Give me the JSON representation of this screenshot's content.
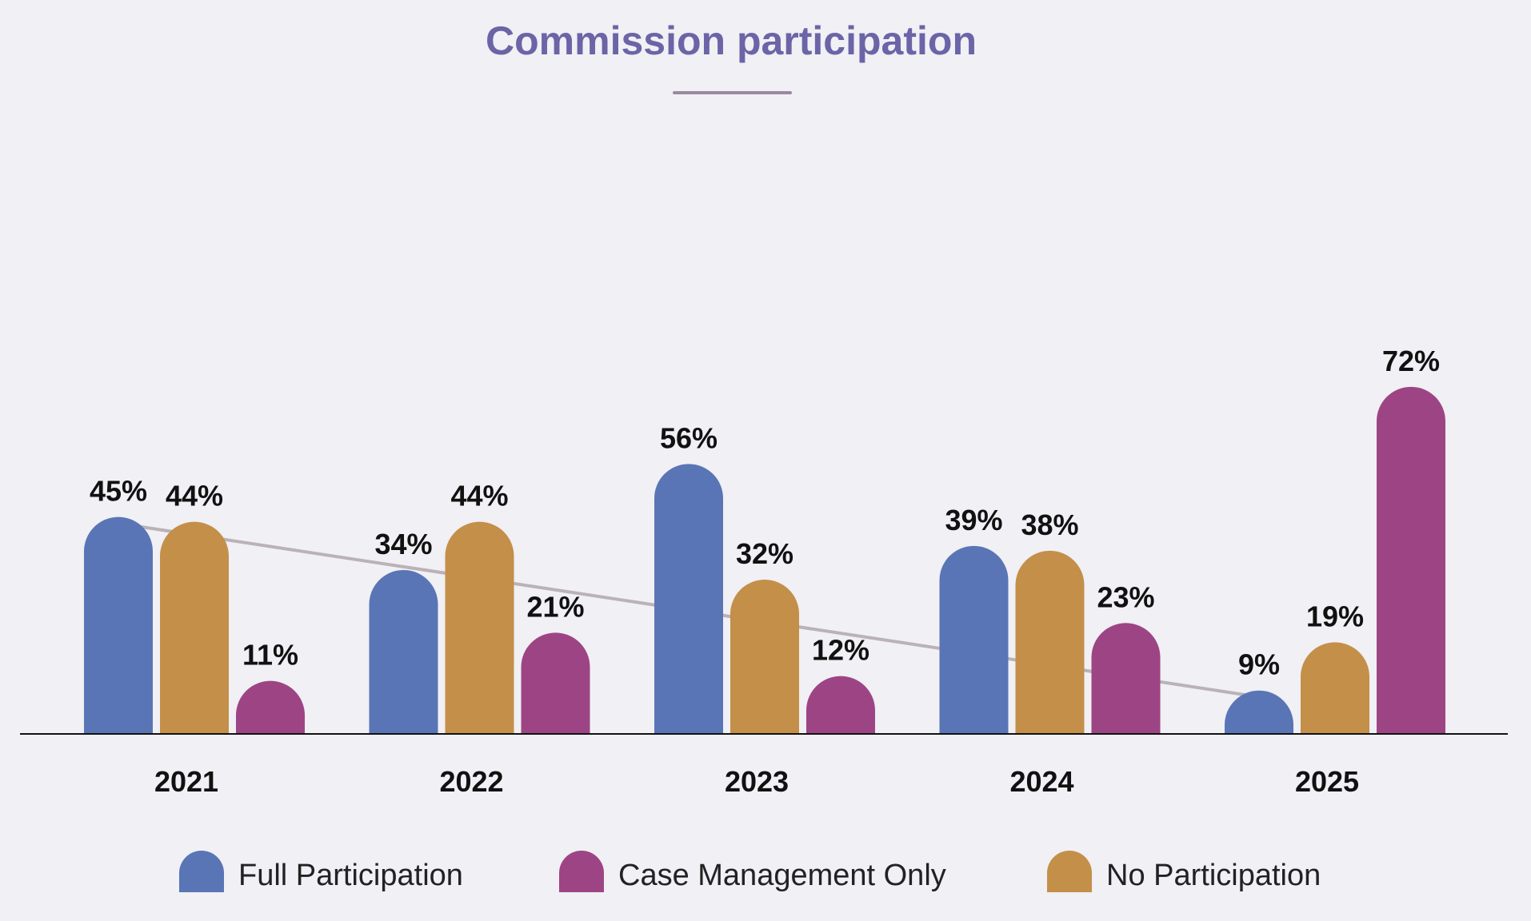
{
  "title": "Commission participation",
  "colors": {
    "title": "#6b64a6",
    "title_rule": "#9a8aa0",
    "axis": "#111111",
    "trend": "#bab2b6",
    "full_participation": "#5a75b5",
    "case_management_only": "#9d4584",
    "no_participation": "#c48f49"
  },
  "chart_data": {
    "type": "bar",
    "title": "Commission participation",
    "xlabel": "",
    "ylabel": "",
    "ylim": [
      0,
      80
    ],
    "grid": false,
    "legend_placement": "bottom",
    "categories": [
      "2021",
      "2022",
      "2023",
      "2024",
      "2025"
    ],
    "bar_order": [
      "Full Participation",
      "No Participation",
      "Case Management Only"
    ],
    "series": [
      {
        "name": "Full Participation",
        "color": "#5a75b5",
        "values": [
          45,
          34,
          56,
          39,
          9
        ],
        "labels": [
          "45%",
          "34%",
          "56%",
          "39%",
          "9%"
        ]
      },
      {
        "name": "Case Management Only",
        "color": "#9d4584",
        "values": [
          11,
          21,
          12,
          23,
          72
        ],
        "labels": [
          "11%",
          "21%",
          "12%",
          "23%",
          "72%"
        ]
      },
      {
        "name": "No Participation",
        "color": "#c48f49",
        "values": [
          44,
          44,
          32,
          38,
          19
        ],
        "labels": [
          "44%",
          "44%",
          "32%",
          "38%",
          "19%"
        ]
      }
    ],
    "trendline": {
      "series": "Full Participation",
      "from": {
        "x": "2021",
        "y": 45
      },
      "to": {
        "x": "2025",
        "y": 9
      }
    }
  },
  "legend": [
    {
      "label": "Full Participation",
      "color": "#5a75b5"
    },
    {
      "label": "Case Management Only",
      "color": "#9d4584"
    },
    {
      "label": "No Participation",
      "color": "#c48f49"
    }
  ]
}
